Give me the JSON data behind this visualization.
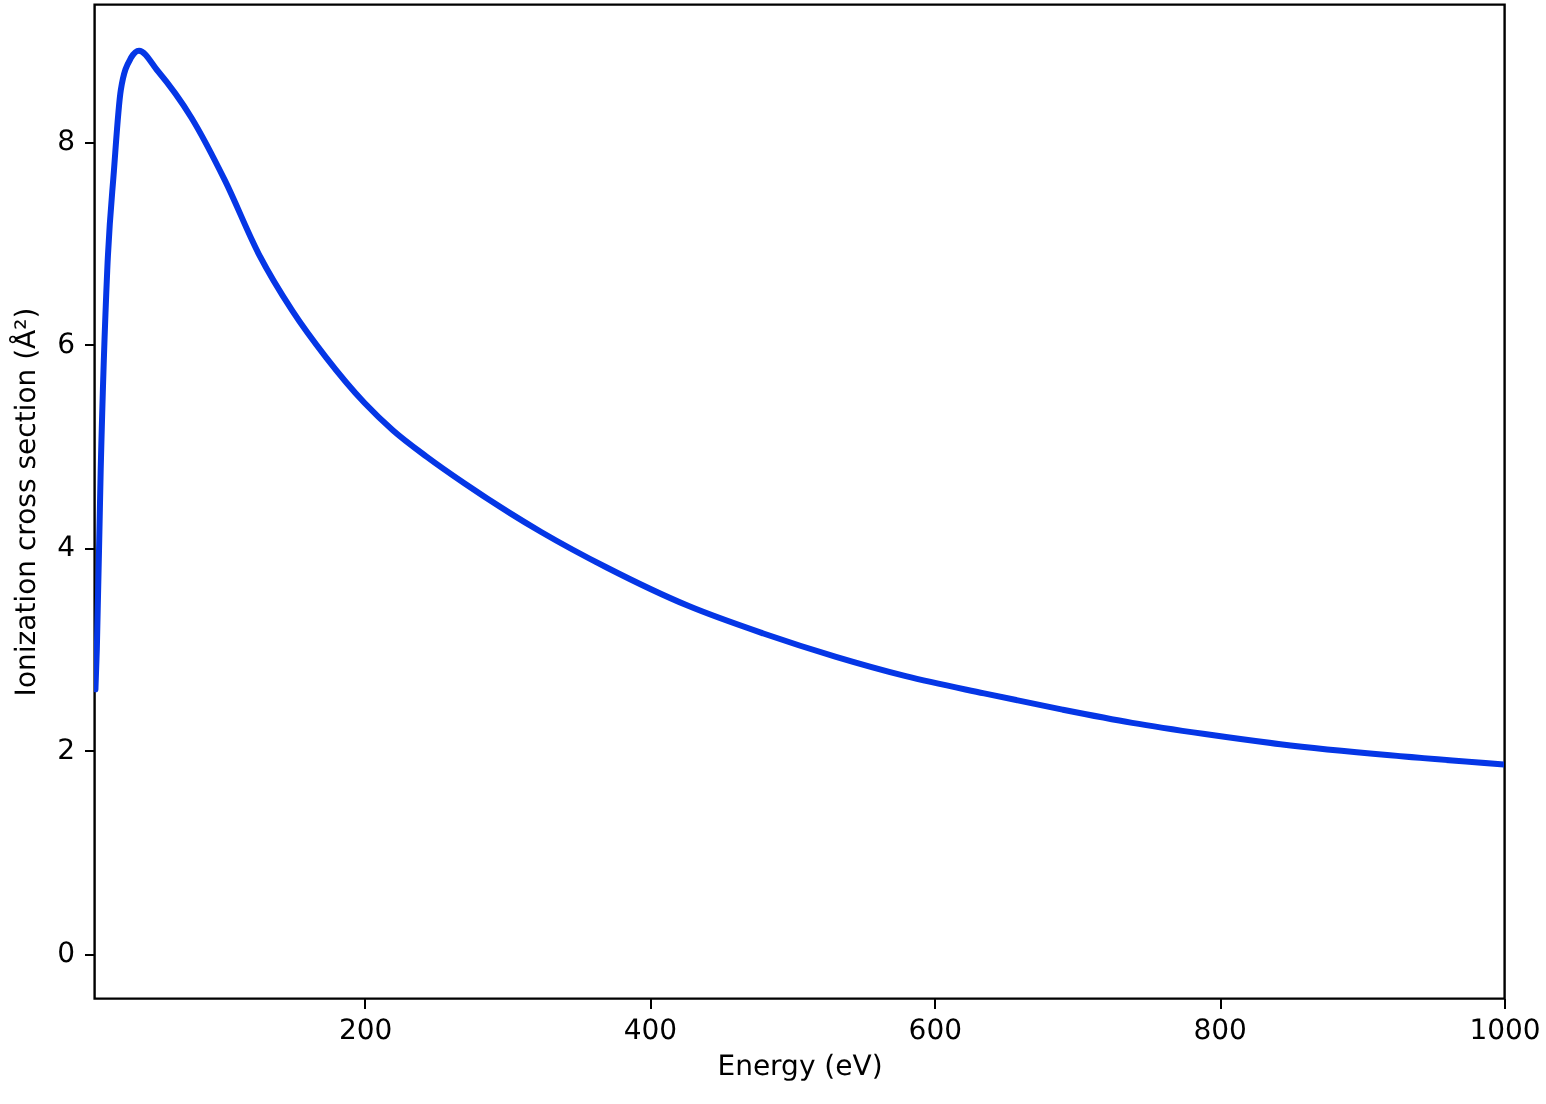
{
  "chart_data": {
    "type": "line",
    "xlabel": "Energy (eV)",
    "ylabel": "Ionization cross section (Å²)",
    "xlim": [
      10,
      1000
    ],
    "xticks": [
      200,
      400,
      600,
      800,
      1000
    ],
    "ylim": [
      -0.44,
      9.35
    ],
    "yticks": [
      0,
      2,
      4,
      6,
      8
    ],
    "grid": false,
    "marker": "none",
    "line_style": "solid",
    "series": [
      {
        "color": "#0536e6",
        "x": [
          11,
          12,
          14.7,
          19.3,
          24,
          28.8,
          36,
          41.6,
          54.8,
          78.4,
          102,
          125.6,
          149.2,
          172.9,
          200,
          220,
          243.7,
          270,
          324,
          370,
          427.6,
          480,
          531,
          580,
          635,
          690,
          739,
          790,
          843,
          920,
          1000
        ],
        "values": [
          2.6,
          3.0,
          4.76,
          6.73,
          7.71,
          8.5,
          8.82,
          8.89,
          8.69,
          8.23,
          7.61,
          6.89,
          6.33,
          5.87,
          5.42,
          5.15,
          4.89,
          4.63,
          4.15,
          3.8,
          3.42,
          3.15,
          2.92,
          2.73,
          2.56,
          2.4,
          2.27,
          2.16,
          2.06,
          1.95,
          1.86
        ]
      }
    ]
  }
}
